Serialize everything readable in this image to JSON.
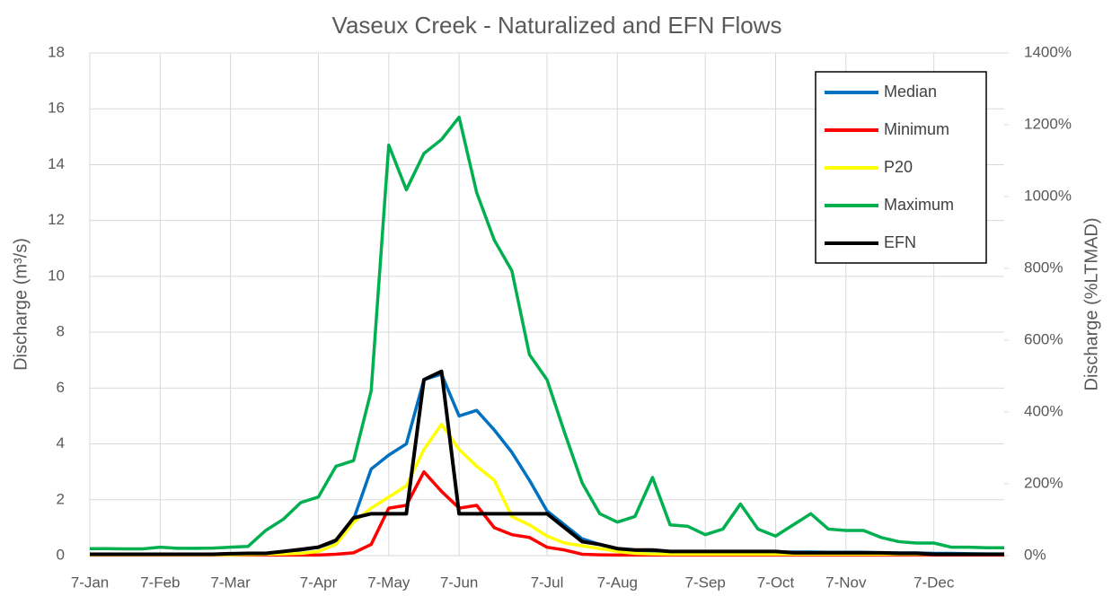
{
  "chart_data": {
    "type": "line",
    "title": "Vaseux Creek - Naturalized and EFN Flows",
    "y_label": "Discharge (m³/s)",
    "y2_label": "Discharge (%LTMAD)",
    "categories": [
      "7-Jan",
      null,
      null,
      null,
      "7-Feb",
      null,
      null,
      null,
      "7-Mar",
      null,
      null,
      null,
      null,
      "7-Apr",
      null,
      null,
      null,
      "7-May",
      null,
      null,
      null,
      "7-Jun",
      null,
      null,
      null,
      null,
      "7-Jul",
      null,
      null,
      null,
      "7-Aug",
      null,
      null,
      null,
      null,
      "7-Sep",
      null,
      null,
      null,
      "7-Oct",
      null,
      null,
      null,
      "7-Nov",
      null,
      null,
      null,
      null,
      "7-Dec",
      null,
      null,
      null,
      null
    ],
    "ylim": [
      0,
      18
    ],
    "yticks": [
      0,
      2,
      4,
      6,
      8,
      10,
      12,
      14,
      16,
      18
    ],
    "y2lim": [
      0,
      1400
    ],
    "y2ticks": [
      {
        "value": 0,
        "label": "0%"
      },
      {
        "value": 200,
        "label": "200%"
      },
      {
        "value": 400,
        "label": "400%"
      },
      {
        "value": 600,
        "label": "600%"
      },
      {
        "value": 800,
        "label": "800%"
      },
      {
        "value": 1000,
        "label": "1000%"
      },
      {
        "value": 1200,
        "label": "1200%"
      },
      {
        "value": 1400,
        "label": "1400%"
      }
    ],
    "grid": true,
    "legend": "top-right",
    "series": [
      {
        "name": "Median",
        "color": "#0070c0",
        "values": [
          0.05,
          0.05,
          0.05,
          0.04,
          0.04,
          0.04,
          0.04,
          0.04,
          0.05,
          0.06,
          0.07,
          0.1,
          0.2,
          0.3,
          0.5,
          1.3,
          3.1,
          3.6,
          4.0,
          6.3,
          6.5,
          5.0,
          5.2,
          4.5,
          3.7,
          2.7,
          1.6,
          1.1,
          0.6,
          0.4,
          0.25,
          0.18,
          0.15,
          0.15,
          0.15,
          0.14,
          0.14,
          0.14,
          0.14,
          0.13,
          0.13,
          0.13,
          0.12,
          0.12,
          0.12,
          0.1,
          0.1,
          0.1,
          0.08,
          0.08,
          0.07,
          0.06,
          0.06
        ]
      },
      {
        "name": "Minimum",
        "color": "#ff0000",
        "values": [
          0.02,
          0.02,
          0.02,
          0.02,
          0.02,
          0.02,
          0.02,
          0.02,
          0.02,
          0.02,
          0.02,
          0.02,
          0.02,
          0.02,
          0.05,
          0.1,
          0.4,
          1.7,
          1.8,
          3.0,
          2.3,
          1.7,
          1.8,
          1.0,
          0.75,
          0.65,
          0.3,
          0.2,
          0.05,
          0.03,
          0.02,
          0.02,
          0.02,
          0.02,
          0.02,
          0.02,
          0.02,
          0.02,
          0.02,
          0.02,
          0.02,
          0.02,
          0.02,
          0.02,
          0.02,
          0.02,
          0.02,
          0.02,
          0.02,
          0.02,
          0.02,
          0.02,
          0.02
        ]
      },
      {
        "name": "P20",
        "color": "#ffff00",
        "values": [
          0.03,
          0.03,
          0.03,
          0.03,
          0.03,
          0.03,
          0.03,
          0.03,
          0.03,
          0.04,
          0.05,
          0.06,
          0.08,
          0.15,
          0.4,
          1.2,
          1.7,
          2.1,
          2.5,
          3.8,
          4.7,
          3.8,
          3.2,
          2.7,
          1.4,
          1.1,
          0.7,
          0.45,
          0.35,
          0.25,
          0.15,
          0.08,
          0.06,
          0.05,
          0.05,
          0.05,
          0.05,
          0.05,
          0.05,
          0.05,
          0.05,
          0.05,
          0.05,
          0.05,
          0.05,
          0.05,
          0.05,
          0.05,
          0.05,
          0.05,
          0.05,
          0.05,
          0.05
        ]
      },
      {
        "name": "Maximum",
        "color": "#00b050",
        "values": [
          0.25,
          0.25,
          0.24,
          0.24,
          0.3,
          0.26,
          0.26,
          0.27,
          0.3,
          0.33,
          0.9,
          1.3,
          1.9,
          2.1,
          3.2,
          3.4,
          5.9,
          14.7,
          13.1,
          14.4,
          14.9,
          15.7,
          13.0,
          11.3,
          10.2,
          7.2,
          6.3,
          4.4,
          2.6,
          1.5,
          1.2,
          1.4,
          2.8,
          1.1,
          1.05,
          0.75,
          0.95,
          1.85,
          0.95,
          0.7,
          1.1,
          1.5,
          0.95,
          0.9,
          0.9,
          0.65,
          0.5,
          0.45,
          0.45,
          0.3,
          0.3,
          0.28,
          0.28
        ]
      },
      {
        "name": "EFN",
        "color": "#000000",
        "values": [
          0.05,
          0.05,
          0.05,
          0.05,
          0.05,
          0.05,
          0.05,
          0.05,
          0.07,
          0.08,
          0.08,
          0.15,
          0.22,
          0.3,
          0.55,
          1.35,
          1.5,
          1.5,
          1.5,
          6.3,
          6.6,
          1.5,
          1.5,
          1.5,
          1.5,
          1.5,
          1.5,
          1.0,
          0.5,
          0.4,
          0.25,
          0.2,
          0.2,
          0.15,
          0.15,
          0.15,
          0.15,
          0.15,
          0.15,
          0.15,
          0.1,
          0.1,
          0.1,
          0.1,
          0.1,
          0.1,
          0.08,
          0.08,
          0.05,
          0.05,
          0.05,
          0.05,
          0.05
        ]
      }
    ]
  }
}
